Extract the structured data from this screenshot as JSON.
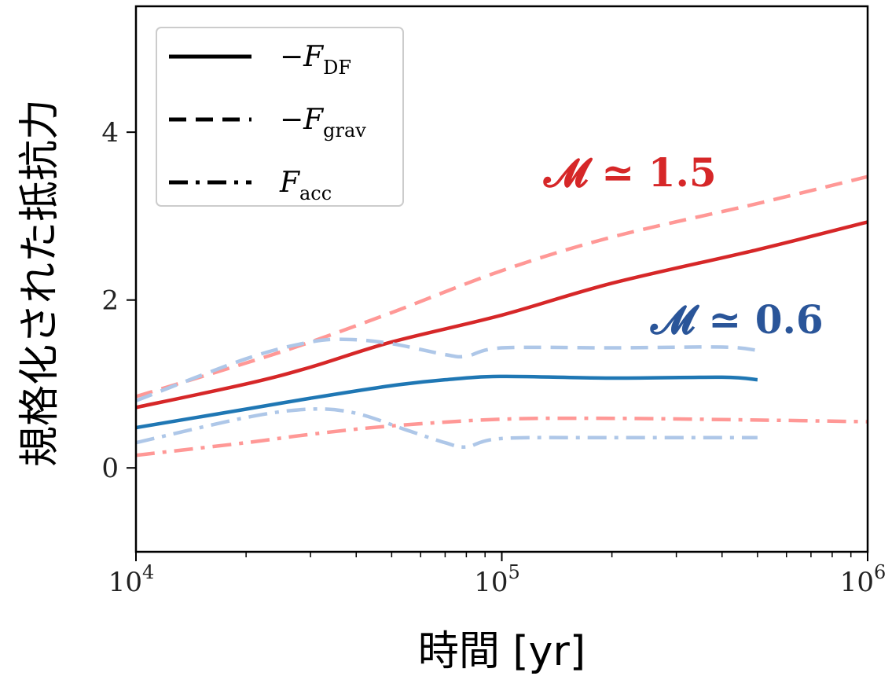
{
  "chart_data": {
    "type": "line",
    "xlabel": "時間 [yr]",
    "ylabel": "規格化された抵抗力",
    "x_scale": "log",
    "xlim": [
      10000,
      1000000
    ],
    "ylim": [
      -1,
      5.5
    ],
    "x_ticks": [
      {
        "value": 10000,
        "base": "10",
        "exp": "4"
      },
      {
        "value": 100000,
        "base": "10",
        "exp": "5"
      },
      {
        "value": 1000000,
        "base": "10",
        "exp": "6"
      }
    ],
    "y_ticks": [
      {
        "value": 0,
        "label": "0"
      },
      {
        "value": 2,
        "label": "2"
      },
      {
        "value": 4,
        "label": "4"
      }
    ],
    "grid": false,
    "legend": {
      "placement": "top-left",
      "entries": [
        {
          "label": "−F",
          "sub": "DF",
          "dash": "solid"
        },
        {
          "label": "−F",
          "sub": "grav",
          "dash": "dashed"
        },
        {
          "label": "F",
          "sub": "acc",
          "dash": "dashdot"
        }
      ]
    },
    "annotations": [
      {
        "text": "𝓜 ≃ 1.5",
        "color": "#d62728"
      },
      {
        "text": "𝓜 ≃ 0.6",
        "color": "#2a5599"
      }
    ],
    "series": [
      {
        "color": "#d62728",
        "dash": "solid",
        "points": [
          [
            10000,
            0.72
          ],
          [
            20000,
            1.0
          ],
          [
            30000,
            1.2
          ],
          [
            50000,
            1.5
          ],
          [
            100000,
            1.82
          ],
          [
            200000,
            2.2
          ],
          [
            500000,
            2.6
          ],
          [
            1000000,
            2.93
          ]
        ]
      },
      {
        "color": "#ff9896",
        "dash": "dashed",
        "points": [
          [
            10000,
            0.85
          ],
          [
            20000,
            1.25
          ],
          [
            30000,
            1.5
          ],
          [
            50000,
            1.85
          ],
          [
            100000,
            2.35
          ],
          [
            200000,
            2.75
          ],
          [
            500000,
            3.15
          ],
          [
            1000000,
            3.47
          ]
        ]
      },
      {
        "color": "#ff9896",
        "dash": "dashdot",
        "points": [
          [
            10000,
            0.15
          ],
          [
            20000,
            0.3
          ],
          [
            30000,
            0.4
          ],
          [
            50000,
            0.5
          ],
          [
            100000,
            0.58
          ],
          [
            200000,
            0.59
          ],
          [
            500000,
            0.57
          ],
          [
            1000000,
            0.55
          ]
        ]
      },
      {
        "color": "#1f77b4",
        "dash": "solid",
        "points": [
          [
            10000,
            0.48
          ],
          [
            20000,
            0.7
          ],
          [
            30000,
            0.83
          ],
          [
            50000,
            0.98
          ],
          [
            70000,
            1.05
          ],
          [
            100000,
            1.09
          ],
          [
            200000,
            1.07
          ],
          [
            400000,
            1.08
          ],
          [
            500000,
            1.05
          ]
        ]
      },
      {
        "color": "#aec7e8",
        "dash": "dashed",
        "points": [
          [
            10000,
            0.8
          ],
          [
            20000,
            1.3
          ],
          [
            30000,
            1.5
          ],
          [
            38000,
            1.53
          ],
          [
            50000,
            1.48
          ],
          [
            70000,
            1.35
          ],
          [
            80000,
            1.33
          ],
          [
            100000,
            1.43
          ],
          [
            200000,
            1.43
          ],
          [
            400000,
            1.44
          ],
          [
            500000,
            1.4
          ]
        ]
      },
      {
        "color": "#aec7e8",
        "dash": "dashdot",
        "points": [
          [
            10000,
            0.3
          ],
          [
            20000,
            0.6
          ],
          [
            30000,
            0.7
          ],
          [
            40000,
            0.65
          ],
          [
            55000,
            0.45
          ],
          [
            70000,
            0.3
          ],
          [
            80000,
            0.25
          ],
          [
            100000,
            0.35
          ],
          [
            200000,
            0.36
          ],
          [
            500000,
            0.36
          ]
        ]
      }
    ]
  }
}
